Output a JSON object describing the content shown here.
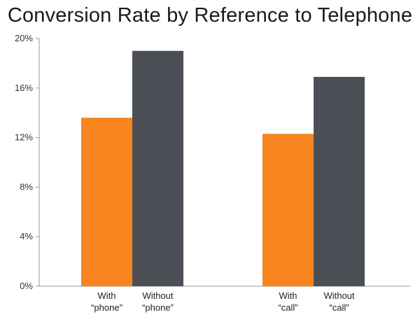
{
  "chart_data": {
    "type": "bar",
    "title": "Conversion Rate by Reference to Telephone",
    "xlabel": "",
    "ylabel": "",
    "ylim": [
      0,
      20
    ],
    "yticks": [
      "0%",
      "4%",
      "8%",
      "12%",
      "16%",
      "20%"
    ],
    "ytick_values": [
      0,
      4,
      8,
      12,
      16,
      20
    ],
    "grid": false,
    "legend": "none",
    "colors": {
      "with": "#f7841f",
      "without": "#4b4f55",
      "axis": "#999999"
    },
    "groups": [
      {
        "bars": [
          {
            "label_line1": "With",
            "label_line2": "“phone”",
            "value": 13.6,
            "kind": "with"
          },
          {
            "label_line1": "Without",
            "label_line2": "“phone”",
            "value": 19.0,
            "kind": "without"
          }
        ]
      },
      {
        "bars": [
          {
            "label_line1": "With",
            "label_line2": "“call”",
            "value": 12.3,
            "kind": "with"
          },
          {
            "label_line1": "Without",
            "label_line2": "“call”",
            "value": 16.9,
            "kind": "without"
          }
        ]
      }
    ]
  }
}
